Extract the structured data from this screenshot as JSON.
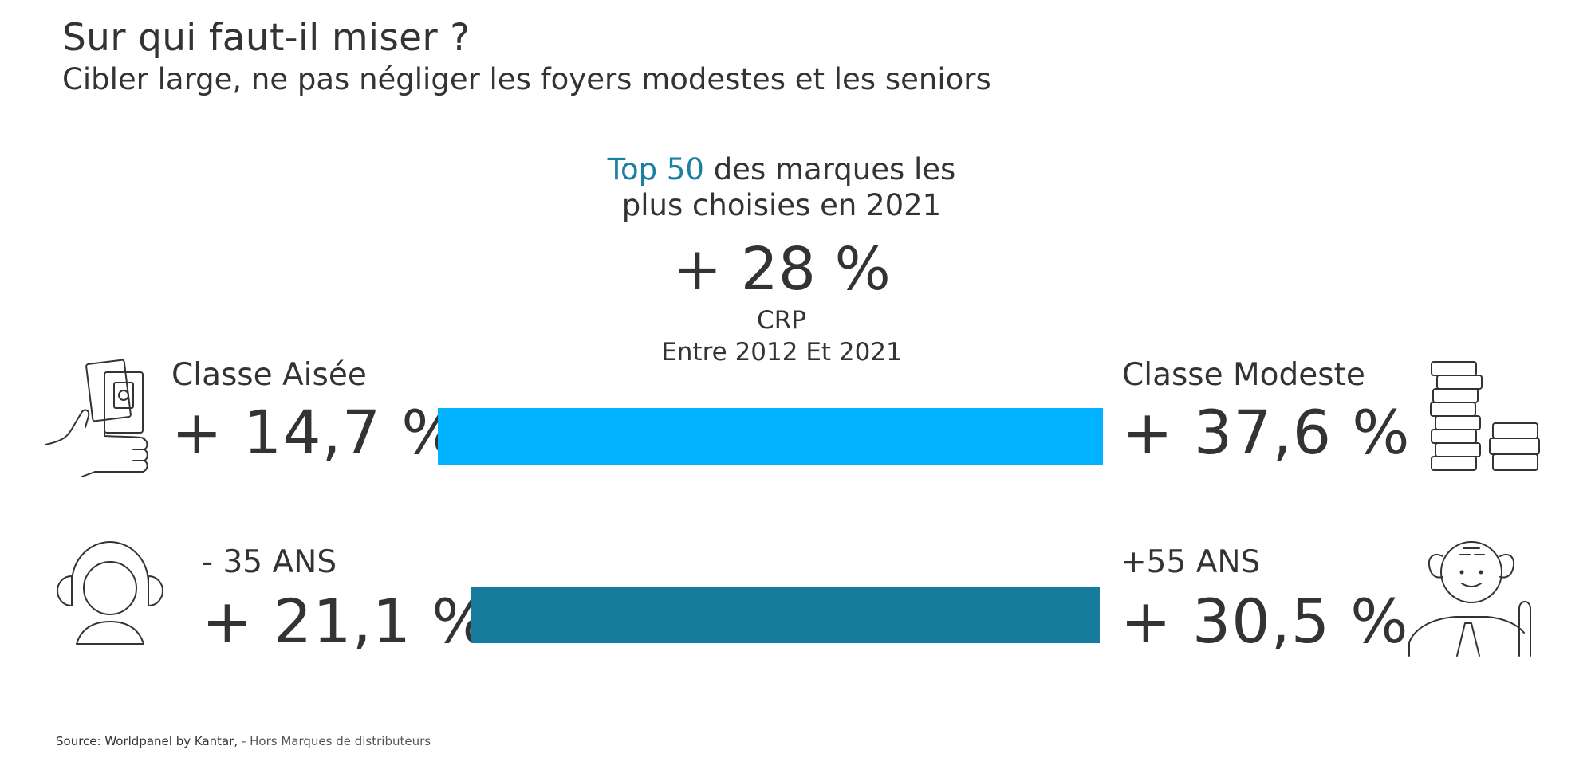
{
  "title": "Sur qui faut-il miser ?",
  "subtitle": "Cibler large, ne pas négliger les foyers modestes et les seniors",
  "headline": {
    "accent": "Top 50",
    "line1_rest": " des marques les",
    "line2": "plus choisies en 2021"
  },
  "main_metric": {
    "value": "+ 28 %",
    "label": "CRP",
    "period": "Entre 2012 Et 2021"
  },
  "rows": [
    {
      "left": {
        "label": "Classe Aisée",
        "value": "+ 14,7 %"
      },
      "right": {
        "label": "Classe Modeste",
        "value": "+ 37,6 %"
      },
      "bar_color": "#00b2ff"
    },
    {
      "left": {
        "label": "- 35 ANS",
        "value": "+ 21,1 %"
      },
      "right": {
        "label": "+55 ANS",
        "value": "+ 30,5 %"
      },
      "bar_color": "#157c9d"
    }
  ],
  "icons": {
    "row1_left": "hand-holding-phone-icon",
    "row1_right": "coin-stacks-icon",
    "row2_left": "young-person-headphones-icon",
    "row2_right": "senior-with-cane-icon"
  },
  "colors": {
    "accent": "#1b7fa3",
    "text": "#333333"
  },
  "source": {
    "label": "Source: Worldpanel by Kantar, ",
    "note": "- Hors Marques de distributeurs"
  }
}
